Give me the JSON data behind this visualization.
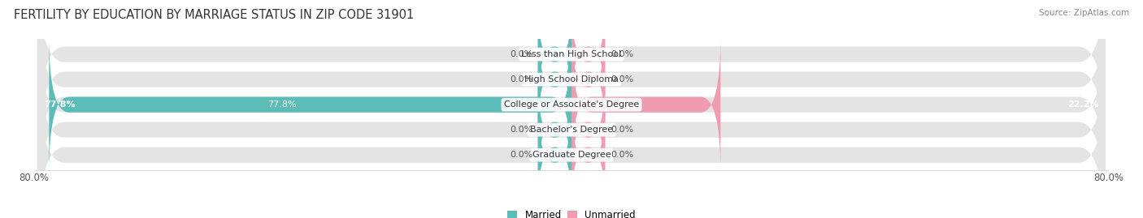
{
  "title": "FERTILITY BY EDUCATION BY MARRIAGE STATUS IN ZIP CODE 31901",
  "source": "Source: ZipAtlas.com",
  "categories": [
    "Less than High School",
    "High School Diploma",
    "College or Associate's Degree",
    "Bachelor's Degree",
    "Graduate Degree"
  ],
  "married_values": [
    0.0,
    0.0,
    77.8,
    0.0,
    0.0
  ],
  "unmarried_values": [
    0.0,
    0.0,
    22.2,
    0.0,
    0.0
  ],
  "x_min": -80.0,
  "x_max": 80.0,
  "married_color": "#5bbcb8",
  "unmarried_color": "#f09cb0",
  "bar_bg_color": "#e4e4e4",
  "bar_height": 0.62,
  "bar_gap": 0.12,
  "stub_size": 5.0,
  "label_fontsize": 8.0,
  "title_fontsize": 10.5,
  "source_fontsize": 7.5,
  "legend_married": "Married",
  "legend_unmarried": "Unmarried",
  "x_tick_labels": [
    "80.0%",
    "80.0%"
  ]
}
